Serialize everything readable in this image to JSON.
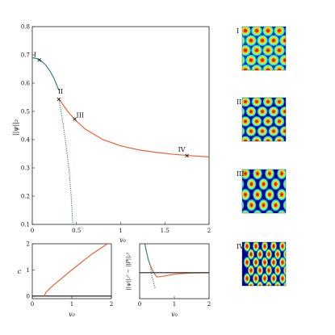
{
  "chart_data": [
    {
      "type": "line",
      "panel": "main",
      "xlabel": "v0",
      "ylabel": "||ψ||_2",
      "xlim": [
        0,
        2
      ],
      "ylim": [
        0.1,
        0.8
      ],
      "xticks": [
        "0",
        "0.5",
        "1",
        "1.5",
        "2"
      ],
      "yticks": [
        "0.1",
        "0.2",
        "0.3",
        "0.4",
        "0.5",
        "0.6",
        "0.7",
        "0.8"
      ],
      "series": [
        {
          "style": "solid",
          "color": "#2e7f8c",
          "x": [
            0,
            0.05,
            0.1,
            0.15,
            0.2,
            0.25,
            0.3
          ],
          "y": [
            0.69,
            0.687,
            0.679,
            0.665,
            0.643,
            0.614,
            0.575
          ]
        },
        {
          "style": "dotted",
          "color": "#2e7f8c",
          "x": [
            0.3,
            0.33,
            0.36,
            0.39,
            0.42,
            0.44,
            0.455,
            0.46
          ],
          "y": [
            0.545,
            0.49,
            0.43,
            0.36,
            0.28,
            0.2,
            0.12,
            0.1
          ]
        },
        {
          "style": "solid",
          "color": "#f06030",
          "x": [
            0.3,
            0.4,
            0.5,
            0.6,
            0.8,
            1.0,
            1.2,
            1.4,
            1.6,
            1.8,
            2.0
          ],
          "y": [
            0.545,
            0.5,
            0.465,
            0.437,
            0.4,
            0.378,
            0.364,
            0.355,
            0.348,
            0.343,
            0.339
          ]
        }
      ],
      "annotations": [
        {
          "label": "I",
          "x": 0.08,
          "y": 0.682
        },
        {
          "label": "II",
          "x": 0.3,
          "y": 0.543
        },
        {
          "label": "III",
          "x": 0.48,
          "y": 0.473
        },
        {
          "label": "IV",
          "x": 1.75,
          "y": 0.343
        }
      ]
    },
    {
      "type": "line",
      "panel": "bottom-left",
      "xlabel": "v0",
      "ylabel": "c",
      "xlim": [
        0,
        2
      ],
      "ylim": [
        -0.1,
        2
      ],
      "xticks": [
        "0",
        "1",
        "2"
      ],
      "yticks": [
        "0",
        "1",
        "2"
      ],
      "series": [
        {
          "style": "solid",
          "color": "#222222",
          "x": [
            0,
            2
          ],
          "y": [
            0,
            0
          ]
        },
        {
          "style": "solid",
          "color": "#f06030",
          "x": [
            0.3,
            0.35,
            0.45,
            0.6,
            1.0,
            1.5,
            1.9
          ],
          "y": [
            0.0,
            0.15,
            0.3,
            0.5,
            1.0,
            1.6,
            2.0
          ]
        }
      ]
    },
    {
      "type": "line",
      "panel": "bottom-right",
      "xlabel": "v0",
      "ylabel": "||ψ||_2^2 − ||P||_2^2",
      "xlim": [
        0,
        2
      ],
      "xticks": [
        "0",
        "1",
        "2"
      ],
      "series": [
        {
          "style": "solid",
          "color": "#2e7f8c",
          "x": [
            0.15,
            0.2,
            0.25,
            0.3
          ],
          "y": [
            1.0,
            0.7,
            0.45,
            0.28
          ]
        },
        {
          "style": "dotted",
          "color": "#2e7f8c",
          "x": [
            0.3,
            0.35,
            0.4,
            0.45
          ],
          "y": [
            0.28,
            -0.1,
            -0.35,
            -0.55
          ]
        },
        {
          "style": "solid",
          "color": "#f06030",
          "x": [
            0.3,
            0.4,
            0.5,
            0.7,
            1.0,
            1.5,
            2.0
          ],
          "y": [
            0.28,
            0.0,
            -0.15,
            -0.12,
            -0.05,
            -0.01,
            0.0
          ]
        },
        {
          "style": "solid",
          "color": "#222222",
          "x": [
            0,
            2
          ],
          "y": [
            0,
            0
          ]
        }
      ]
    },
    {
      "type": "heatmap",
      "panel": "thumbnails",
      "labels": [
        "I",
        "II",
        "III",
        "IV"
      ],
      "colormap": [
        "#00008f",
        "#0050ff",
        "#00dfff",
        "#9fff60",
        "#ffdf00",
        "#ff4000",
        "#8f0000"
      ]
    }
  ]
}
